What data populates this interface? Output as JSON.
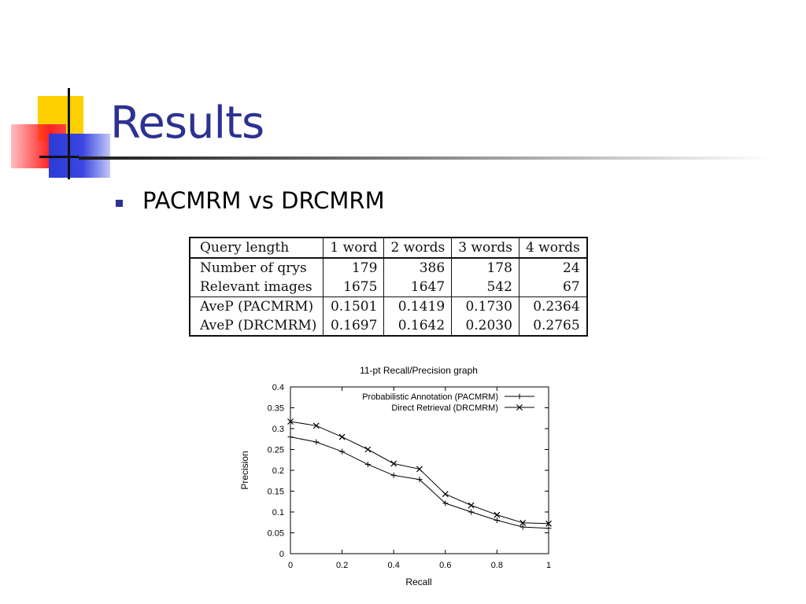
{
  "slide": {
    "title": "Results",
    "bullet": "PACMRM vs DRCMRM"
  },
  "table": {
    "headers": [
      "Query length",
      "1 word",
      "2 words",
      "3 words",
      "4 words"
    ],
    "rows": [
      [
        "Number of qrys",
        "179",
        "386",
        "178",
        "24"
      ],
      [
        "Relevant images",
        "1675",
        "1647",
        "542",
        "67"
      ],
      [
        "AveP (PACMRM)",
        "0.1501",
        "0.1419",
        "0.1730",
        "0.2364"
      ],
      [
        "AveP (DRCMRM)",
        "0.1697",
        "0.1642",
        "0.2030",
        "0.2765"
      ]
    ]
  },
  "chart_data": {
    "type": "line",
    "title": "11-pt Recall/Precision graph",
    "xlabel": "Recall",
    "ylabel": "Precision",
    "xlim": [
      0,
      1
    ],
    "ylim": [
      0,
      0.4
    ],
    "xticks": [
      "0",
      "0.2",
      "0.4",
      "0.6",
      "0.8",
      "1"
    ],
    "yticks": [
      "0",
      "0.05",
      "0.1",
      "0.15",
      "0.2",
      "0.25",
      "0.3",
      "0.35",
      "0.4"
    ],
    "grid": false,
    "legend_position": "top-right",
    "x": [
      0,
      0.1,
      0.2,
      0.3,
      0.4,
      0.5,
      0.6,
      0.7,
      0.8,
      0.9,
      1.0
    ],
    "series": [
      {
        "name": "Probabilistic Annotation (PACMRM)",
        "marker": "plus",
        "values": [
          0.28,
          0.268,
          0.245,
          0.214,
          0.188,
          0.178,
          0.121,
          0.1,
          0.08,
          0.064,
          0.061
        ]
      },
      {
        "name": "Direct Retrieval (DRCMRM)",
        "marker": "cross",
        "values": [
          0.317,
          0.307,
          0.28,
          0.25,
          0.216,
          0.203,
          0.143,
          0.116,
          0.093,
          0.074,
          0.072
        ]
      }
    ]
  }
}
